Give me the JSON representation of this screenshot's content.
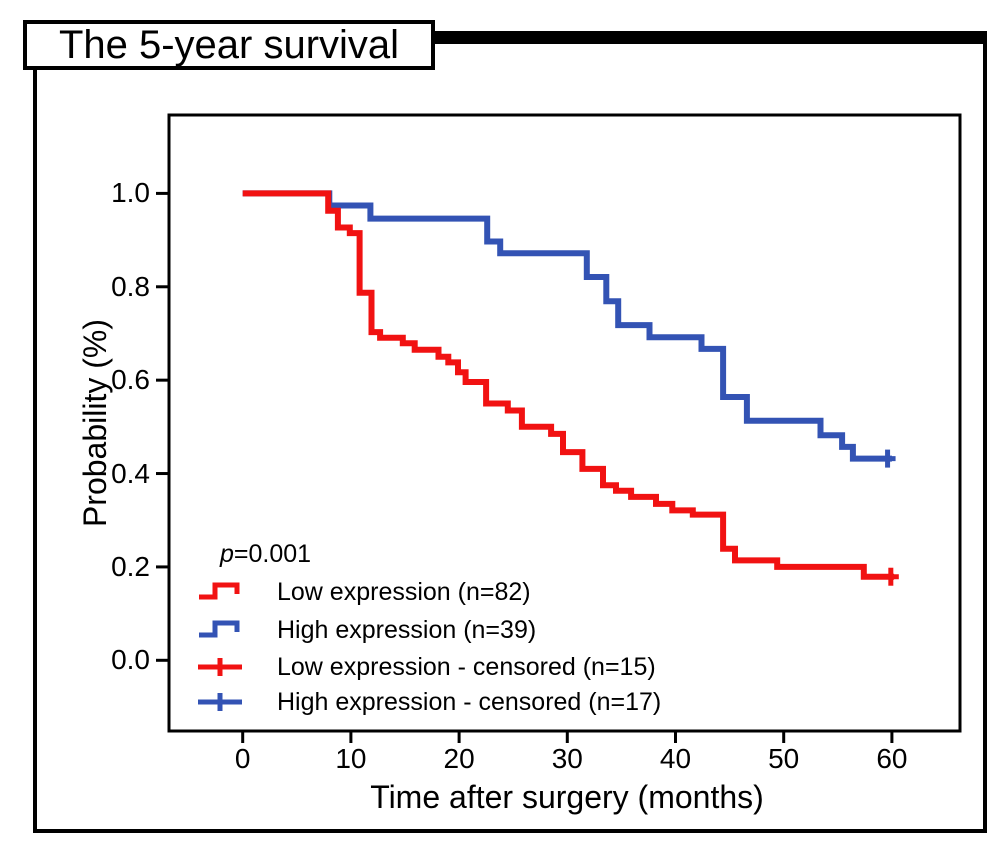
{
  "figure": {
    "title": "The 5-year survival"
  },
  "axes": {
    "x_label": "Time after surgery (months)",
    "y_label": "Probability (%)"
  },
  "annotation": {
    "p_italic": "p",
    "p_rest": "=0.001"
  },
  "legend": {
    "items": [
      {
        "label": "Low expression (n=82)",
        "symbol": "step",
        "color": "#f11212"
      },
      {
        "label": "High expression (n=39)",
        "symbol": "step",
        "color": "#3353b4"
      },
      {
        "label": "Low expression - censored (n=15)",
        "symbol": "plus",
        "color": "#f11212"
      },
      {
        "label": "High expression - censored (n=17)",
        "symbol": "plus",
        "color": "#3353b4"
      }
    ]
  },
  "chart_data": {
    "type": "line",
    "variant": "kaplan_meier_step",
    "title": "The 5-year survival",
    "xlabel": "Time after surgery (months)",
    "ylabel": "Probability (%)",
    "x_ticks": [
      "0",
      "10",
      "20",
      "30",
      "40",
      "50",
      "60"
    ],
    "y_ticks": [
      "0.0",
      "0.2",
      "0.4",
      "0.6",
      "0.8",
      "1.0"
    ],
    "xlim": [
      -6.8,
      66.3
    ],
    "ylim": [
      -0.15,
      1.17
    ],
    "grid": false,
    "legend_position": "lower-left-inside",
    "p_value": "p=0.001",
    "series": [
      {
        "name": "Low expression (n=82)",
        "color": "#f11212",
        "n": 82,
        "censored_n": 15,
        "end_month": 60.2,
        "steps": [
          [
            0,
            1.0
          ],
          [
            7.9,
            0.963
          ],
          [
            8.8,
            0.927
          ],
          [
            9.9,
            0.915
          ],
          [
            10.8,
            0.787
          ],
          [
            11.9,
            0.703
          ],
          [
            12.7,
            0.691
          ],
          [
            14.8,
            0.679
          ],
          [
            15.9,
            0.665
          ],
          [
            18.1,
            0.65
          ],
          [
            19.0,
            0.638
          ],
          [
            19.9,
            0.617
          ],
          [
            20.6,
            0.596
          ],
          [
            22.5,
            0.55
          ],
          [
            24.5,
            0.535
          ],
          [
            25.8,
            0.5
          ],
          [
            28.5,
            0.485
          ],
          [
            29.6,
            0.446
          ],
          [
            31.4,
            0.41
          ],
          [
            33.3,
            0.375
          ],
          [
            34.5,
            0.363
          ],
          [
            35.9,
            0.35
          ],
          [
            38.2,
            0.335
          ],
          [
            39.7,
            0.321
          ],
          [
            41.6,
            0.312
          ],
          [
            44.4,
            0.239
          ],
          [
            45.5,
            0.214
          ],
          [
            49.4,
            0.2
          ],
          [
            57.4,
            0.179
          ]
        ],
        "censored_points": [
          [
            59.9,
            0.179
          ]
        ]
      },
      {
        "name": "High expression (n=39)",
        "color": "#3353b4",
        "n": 39,
        "censored_n": 17,
        "end_month": 60.0,
        "steps": [
          [
            0,
            1.0
          ],
          [
            8.0,
            0.974
          ],
          [
            11.8,
            0.946
          ],
          [
            22.6,
            0.897
          ],
          [
            23.8,
            0.872
          ],
          [
            31.8,
            0.821
          ],
          [
            33.6,
            0.769
          ],
          [
            34.7,
            0.718
          ],
          [
            37.6,
            0.692
          ],
          [
            42.4,
            0.667
          ],
          [
            44.4,
            0.564
          ],
          [
            46.6,
            0.513
          ],
          [
            53.4,
            0.482
          ],
          [
            55.4,
            0.457
          ],
          [
            56.4,
            0.432
          ]
        ],
        "censored_points": [
          [
            59.6,
            0.432
          ]
        ]
      }
    ]
  },
  "colors": {
    "low_expression": "#f11212",
    "high_expression": "#3353b4",
    "frame": "#000000"
  }
}
